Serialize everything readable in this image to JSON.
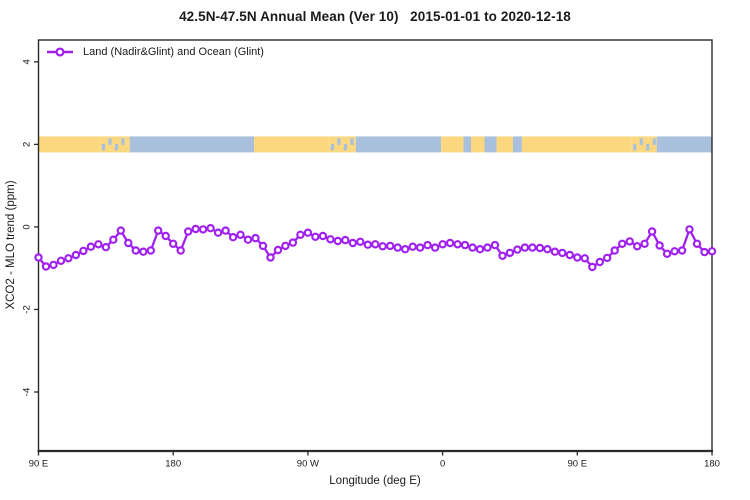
{
  "chart_data": {
    "type": "line",
    "title": "42.5N-47.5N Annual Mean (Ver 10)   2015-01-01 to 2020-12-18",
    "xlabel": "Longitude (deg E)",
    "ylabel": "XCO2 - MLO trend (ppm)",
    "xlim": [
      90,
      540
    ],
    "ylim": [
      -5.4,
      4.5
    ],
    "grid": false,
    "x_ticks": [
      {
        "value": 90,
        "label": "90 E"
      },
      {
        "value": 180,
        "label": "180"
      },
      {
        "value": 270,
        "label": "90 W"
      },
      {
        "value": 360,
        "label": "0"
      },
      {
        "value": 450,
        "label": "90 E"
      },
      {
        "value": 540,
        "label": "180"
      }
    ],
    "y_ticks": [
      {
        "value": 4,
        "label": "4"
      },
      {
        "value": 2,
        "label": "2"
      },
      {
        "value": 0,
        "label": "0"
      },
      {
        "value": -2,
        "label": "-2"
      },
      {
        "value": -4,
        "label": "-4"
      }
    ],
    "legend": {
      "label": "Land (Nadir&Glint) and Ocean (Glint)",
      "position": "top-left"
    },
    "series": [
      {
        "name": "Land (Nadir&Glint) and Ocean (Glint)",
        "color": "#A020F0",
        "marker": "open-circle",
        "x": [
          90,
          95,
          100,
          105,
          110,
          115,
          120,
          125,
          130,
          135,
          140,
          145,
          150,
          155,
          160,
          165,
          170,
          175,
          180,
          185,
          190,
          195,
          200,
          205,
          210,
          215,
          220,
          225,
          230,
          235,
          240,
          245,
          250,
          255,
          260,
          265,
          270,
          275,
          280,
          285,
          290,
          295,
          300,
          305,
          310,
          315,
          320,
          325,
          330,
          335,
          340,
          345,
          350,
          355,
          360,
          365,
          370,
          375,
          380,
          385,
          390,
          395,
          400,
          405,
          410,
          415,
          420,
          425,
          430,
          435,
          440,
          445,
          450,
          455,
          460,
          465,
          470,
          475,
          480,
          485,
          490,
          495,
          500,
          505,
          510,
          515,
          520,
          525,
          530,
          535,
          540
        ],
        "y": [
          -0.74,
          -0.96,
          -0.92,
          -0.82,
          -0.76,
          -0.68,
          -0.58,
          -0.48,
          -0.42,
          -0.49,
          -0.31,
          -0.09,
          -0.39,
          -0.57,
          -0.6,
          -0.57,
          -0.09,
          -0.22,
          -0.41,
          -0.57,
          -0.11,
          -0.05,
          -0.06,
          -0.03,
          -0.14,
          -0.09,
          -0.25,
          -0.19,
          -0.31,
          -0.27,
          -0.46,
          -0.74,
          -0.56,
          -0.46,
          -0.38,
          -0.19,
          -0.14,
          -0.24,
          -0.22,
          -0.3,
          -0.34,
          -0.32,
          -0.39,
          -0.36,
          -0.43,
          -0.42,
          -0.47,
          -0.46,
          -0.5,
          -0.54,
          -0.48,
          -0.5,
          -0.44,
          -0.5,
          -0.42,
          -0.39,
          -0.42,
          -0.44,
          -0.5,
          -0.54,
          -0.5,
          -0.44,
          -0.7,
          -0.63,
          -0.55,
          -0.5,
          -0.5,
          -0.51,
          -0.54,
          -0.6,
          -0.63,
          -0.68,
          -0.74,
          -0.76,
          -0.97,
          -0.85,
          -0.75,
          -0.57,
          -0.41,
          -0.35,
          -0.47,
          -0.41,
          -0.11,
          -0.45,
          -0.65,
          -0.59,
          -0.57,
          -0.06,
          -0.41,
          -0.61,
          -0.59
        ]
      }
    ],
    "surface_strip": {
      "description": "land/ocean map band drawn at y = 2",
      "y_value": 2,
      "land_color": "#FBD87F",
      "ocean_color": "#A9C0DD",
      "segments": [
        {
          "from": 90,
          "to": 131,
          "type": "land"
        },
        {
          "from": 131,
          "to": 151,
          "type": "mixed"
        },
        {
          "from": 151,
          "to": 234,
          "type": "ocean"
        },
        {
          "from": 234,
          "to": 284,
          "type": "land"
        },
        {
          "from": 284,
          "to": 302,
          "type": "mixed"
        },
        {
          "from": 302,
          "to": 359,
          "type": "ocean"
        },
        {
          "from": 359,
          "to": 374,
          "type": "land"
        },
        {
          "from": 374,
          "to": 379,
          "type": "ocean"
        },
        {
          "from": 379,
          "to": 388,
          "type": "land"
        },
        {
          "from": 388,
          "to": 396,
          "type": "ocean"
        },
        {
          "from": 396,
          "to": 407,
          "type": "land"
        },
        {
          "from": 407,
          "to": 413,
          "type": "ocean"
        },
        {
          "from": 413,
          "to": 486,
          "type": "land"
        },
        {
          "from": 486,
          "to": 503,
          "type": "mixed"
        },
        {
          "from": 503,
          "to": 540,
          "type": "ocean"
        }
      ]
    },
    "axis_color": "#2a2a2a"
  }
}
